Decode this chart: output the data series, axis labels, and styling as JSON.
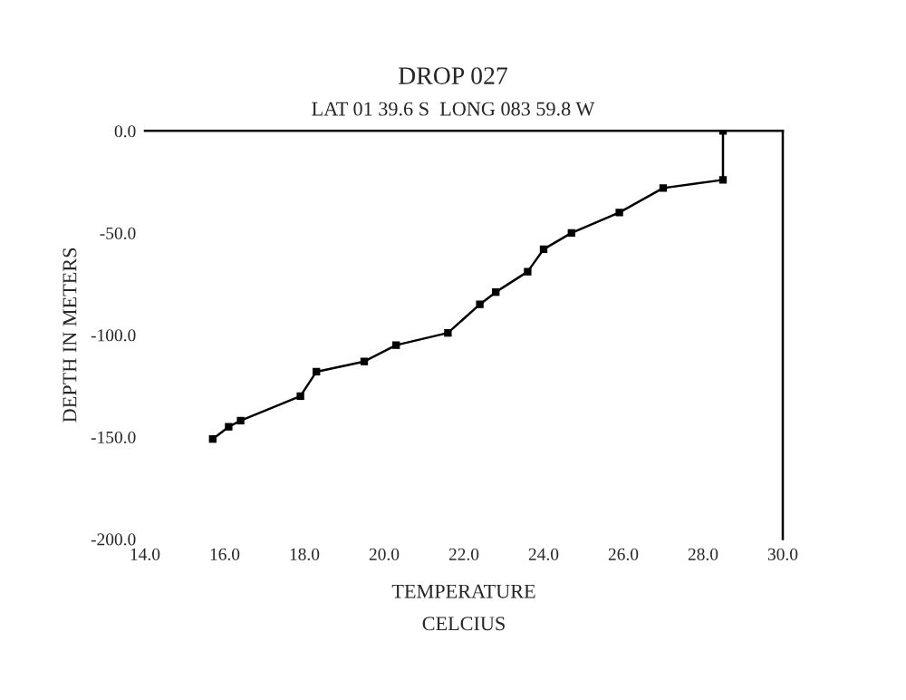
{
  "chart_data": {
    "type": "line",
    "title": "DROP 027",
    "subtitle": "LAT 01 39.6 S  LONG 083 59.8 W",
    "xlabel": "TEMPERATURE\nCELCIUS",
    "ylabel": "DEPTH IN METERS",
    "x": [
      28.5,
      28.5,
      27.0,
      25.9,
      24.7,
      24.0,
      23.6,
      22.8,
      22.4,
      21.6,
      20.3,
      19.5,
      18.3,
      17.9,
      16.4,
      16.1,
      15.7
    ],
    "series": [
      {
        "color": "#000000",
        "values": [
          0,
          -24,
          -28,
          -40,
          -50,
          -58,
          -69,
          -79,
          -85,
          -99,
          -105,
          -113,
          -118,
          -130,
          -142,
          -145,
          -151
        ]
      }
    ],
    "xlim": [
      14,
      30
    ],
    "ylim": [
      -200,
      0
    ],
    "xticks": [
      {
        "value": 14,
        "label": "14.0"
      },
      {
        "value": 16,
        "label": "16.0"
      },
      {
        "value": 18,
        "label": "18.0"
      },
      {
        "value": 20,
        "label": "20.0"
      },
      {
        "value": 22,
        "label": "22.0"
      },
      {
        "value": 24,
        "label": "24.0"
      },
      {
        "value": 26,
        "label": "26.0"
      },
      {
        "value": 28,
        "label": "28.0"
      },
      {
        "value": 30,
        "label": "30.0"
      }
    ],
    "yticks": [
      {
        "value": 0,
        "label": "0.0"
      },
      {
        "value": -50,
        "label": "-50.0"
      },
      {
        "value": -100,
        "label": "-100.0"
      },
      {
        "value": -150,
        "label": "-150.0"
      },
      {
        "value": -200,
        "label": "-200.0"
      }
    ],
    "marker": "square",
    "line_style": "solid",
    "grid": false,
    "legend": false
  }
}
